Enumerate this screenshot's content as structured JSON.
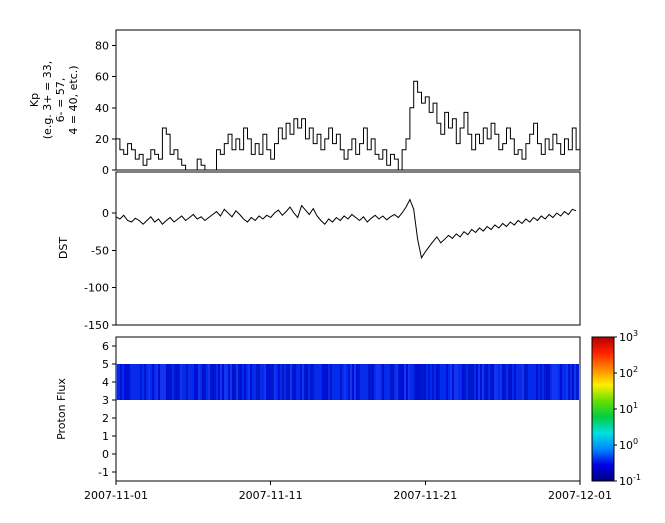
{
  "figure": {
    "background": "#ffffff",
    "line_color": "#000000"
  },
  "x_axis": {
    "tick_labels": [
      "2007-11-01",
      "2007-11-11",
      "2007-11-21",
      "2007-12-01"
    ],
    "range_days": [
      0,
      30
    ]
  },
  "chart_data": [
    {
      "id": "kp",
      "type": "line",
      "ylabel": "Kp (e.g. 3+ = 33, 6- = 57, 4 = 40, etc.)",
      "ylabel_lines": [
        "Kp",
        "(e.g. 3+ = 33,",
        "6- = 57,",
        "4 = 40, etc.)"
      ],
      "ylim": [
        0,
        90
      ],
      "yticks": [
        0,
        20,
        40,
        60,
        80
      ],
      "line_style": "step",
      "x_step_days": 0.25,
      "values": [
        20,
        13,
        10,
        17,
        13,
        7,
        10,
        3,
        7,
        13,
        10,
        7,
        27,
        23,
        10,
        13,
        7,
        3,
        0,
        0,
        0,
        7,
        3,
        0,
        0,
        0,
        13,
        10,
        17,
        23,
        13,
        20,
        13,
        27,
        20,
        10,
        17,
        10,
        23,
        13,
        7,
        17,
        27,
        20,
        30,
        23,
        33,
        27,
        33,
        20,
        27,
        17,
        23,
        13,
        20,
        27,
        17,
        23,
        13,
        7,
        13,
        20,
        10,
        17,
        27,
        13,
        20,
        10,
        7,
        13,
        3,
        10,
        7,
        0,
        13,
        20,
        40,
        57,
        50,
        43,
        47,
        37,
        43,
        30,
        23,
        37,
        27,
        33,
        17,
        27,
        37,
        23,
        13,
        23,
        17,
        27,
        20,
        30,
        23,
        13,
        17,
        27,
        20,
        10,
        13,
        7,
        17,
        23,
        30,
        17,
        10,
        20,
        13,
        23,
        17,
        10,
        20,
        13,
        27,
        13
      ]
    },
    {
      "id": "dst",
      "type": "line",
      "ylabel": "DST",
      "ylim": [
        -150,
        55
      ],
      "yticks": [
        0,
        -50,
        -100,
        -150
      ],
      "line_style": "linear",
      "x_step_days": 0.25,
      "values": [
        -5,
        -8,
        -3,
        -10,
        -12,
        -7,
        -10,
        -15,
        -10,
        -5,
        -12,
        -8,
        -15,
        -10,
        -6,
        -12,
        -8,
        -4,
        -10,
        -6,
        -2,
        -8,
        -5,
        -10,
        -6,
        -2,
        2,
        -4,
        5,
        0,
        -5,
        3,
        -2,
        -8,
        -12,
        -6,
        -10,
        -4,
        -8,
        -3,
        -6,
        0,
        4,
        -3,
        2,
        8,
        0,
        -6,
        10,
        4,
        -2,
        6,
        -4,
        -10,
        -15,
        -8,
        -12,
        -6,
        -10,
        -4,
        -8,
        -2,
        -6,
        -10,
        -5,
        -12,
        -7,
        -3,
        -8,
        -4,
        -9,
        -5,
        -2,
        -6,
        0,
        8,
        18,
        5,
        -35,
        -60,
        -52,
        -45,
        -38,
        -32,
        -40,
        -35,
        -30,
        -34,
        -28,
        -32,
        -25,
        -29,
        -22,
        -26,
        -20,
        -24,
        -18,
        -22,
        -16,
        -20,
        -14,
        -18,
        -12,
        -16,
        -10,
        -14,
        -8,
        -12,
        -6,
        -10,
        -4,
        -8,
        -2,
        -6,
        0,
        -4,
        2,
        -2,
        5,
        3
      ]
    },
    {
      "id": "proton_flux",
      "type": "heatmap",
      "ylabel": "Proton Flux",
      "ylim": [
        -1.5,
        6.5
      ],
      "yticks": [
        6,
        5,
        4,
        3,
        2,
        1,
        0,
        -1
      ],
      "band": {
        "y_min": 3,
        "y_max": 5,
        "approx_value": 0.15,
        "base_color": "#0022dd"
      },
      "colorbar": {
        "scale": "log10",
        "range": [
          0.1,
          1000
        ],
        "ticks": [
          {
            "base": "10",
            "exp": "3"
          },
          {
            "base": "10",
            "exp": "2"
          },
          {
            "base": "10",
            "exp": "1"
          },
          {
            "base": "10",
            "exp": "0"
          },
          {
            "base": "10",
            "exp": "-1"
          }
        ],
        "colors_top_to_bottom": [
          "#b30000",
          "#ff2200",
          "#ff8800",
          "#ffee00",
          "#66e000",
          "#00cc44",
          "#00e0e0",
          "#0088ff",
          "#0000e6",
          "#000080"
        ]
      }
    }
  ]
}
